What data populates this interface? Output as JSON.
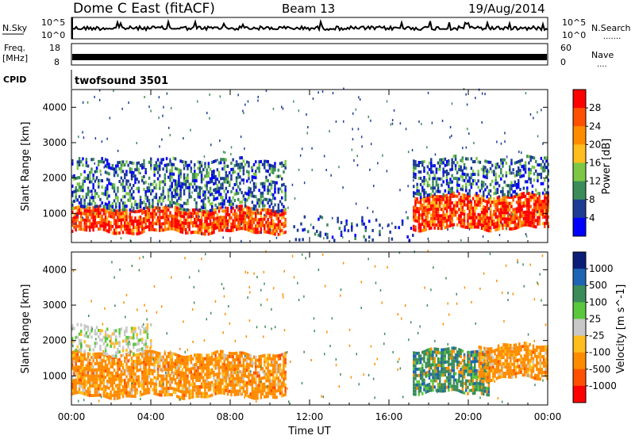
{
  "header": {
    "station": "Dome C East (fitACF)",
    "beam": "Beam 13",
    "date": "19/Aug/2014"
  },
  "top_panels": {
    "nsky": {
      "label": "N.Sky",
      "ticks": [
        "10^5",
        "10^0"
      ],
      "right_label": "N.Search",
      "right_ticks": [
        "10^5",
        "10^0"
      ],
      "right_dots": "......."
    },
    "freq": {
      "label": "Freq.",
      "unit": "[MHz]",
      "ticks": [
        "18",
        "8"
      ],
      "right_label": "Nave",
      "right_ticks": [
        "60",
        "0"
      ],
      "right_dots": "...."
    },
    "cpid": {
      "label": "CPID",
      "program": "twofsound 3501"
    }
  },
  "chart_data": [
    {
      "type": "heatmap",
      "name": "power-panel",
      "xlabel": "Time UT",
      "ylabel": "Slant Range [km]",
      "x_ticks": [
        "00:00",
        "04:00",
        "08:00",
        "12:00",
        "16:00",
        "20:00",
        "00:00"
      ],
      "x_range_hours": [
        0,
        24
      ],
      "y_ticks": [
        1000,
        2000,
        3000,
        4000
      ],
      "y_range_km": [
        180,
        4500
      ],
      "colorbar": {
        "label": "Power [dB]",
        "ticks": [
          "28",
          "24",
          "20",
          "16",
          "12",
          "8",
          "4"
        ],
        "colors": [
          "#ff0000",
          "#ff5000",
          "#ff8c00",
          "#ffbe1e",
          "#7cc846",
          "#3c8c5a",
          "#1e3c96",
          "#0000ff"
        ]
      },
      "regions": [
        {
          "t0": 0.0,
          "t1": 10.8,
          "r0": 450,
          "r1": 1100,
          "level": "high"
        },
        {
          "t0": 0.0,
          "t1": 10.8,
          "r0": 1100,
          "r1": 2500,
          "level": "low"
        },
        {
          "t0": 17.2,
          "t1": 24.0,
          "r0": 550,
          "r1": 1500,
          "level": "high"
        },
        {
          "t0": 17.2,
          "t1": 24.0,
          "r0": 1500,
          "r1": 2500,
          "level": "low"
        },
        {
          "t0": 11.0,
          "t1": 17.2,
          "r0": 200,
          "r1": 900,
          "level": "sparse"
        }
      ]
    },
    {
      "type": "heatmap",
      "name": "velocity-panel",
      "xlabel": "Time UT",
      "ylabel": "Slant Range [km]",
      "x_ticks": [
        "00:00",
        "04:00",
        "08:00",
        "12:00",
        "16:00",
        "20:00",
        "00:00"
      ],
      "x_range_hours": [
        0,
        24
      ],
      "y_ticks": [
        1000,
        2000,
        3000,
        4000
      ],
      "y_range_km": [
        180,
        4500
      ],
      "colorbar": {
        "label": "Velocity [m s^-1]",
        "ticks": [
          "1000",
          "500",
          "100",
          "25",
          "-25",
          "-100",
          "-500",
          "-1000"
        ],
        "colors": [
          "#0a1e78",
          "#1e64b4",
          "#3c8c5a",
          "#5ac83c",
          "#c8c8c8",
          "#ffbe1e",
          "#ff8c00",
          "#ff5000",
          "#ff0000"
        ]
      },
      "regions": [
        {
          "t0": 0.0,
          "t1": 10.8,
          "r0": 400,
          "r1": 1600,
          "level": "negative"
        },
        {
          "t0": 0.0,
          "t1": 4.0,
          "r0": 1600,
          "r1": 2400,
          "level": "near-zero"
        },
        {
          "t0": 17.2,
          "t1": 21.0,
          "r0": 500,
          "r1": 1700,
          "level": "positive"
        },
        {
          "t0": 20.5,
          "t1": 24.0,
          "r0": 900,
          "r1": 1800,
          "level": "negative"
        }
      ]
    }
  ]
}
